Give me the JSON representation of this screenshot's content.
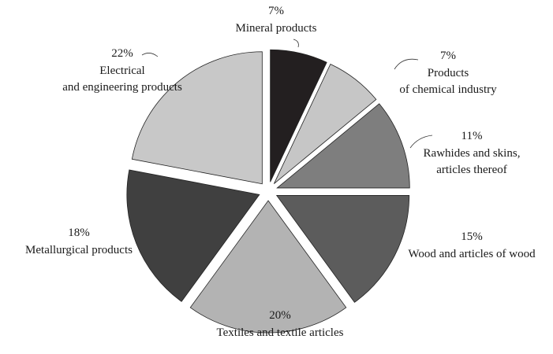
{
  "chart_data": {
    "type": "pie",
    "categories": [
      "Mineral products",
      "Products\nof chemical industry",
      "Rawhides and skins,\narticles thereof",
      "Wood and articles of wood",
      "Textiles and textile articles",
      "Metallurgical products",
      "Electrical\nand engineering products"
    ],
    "values": [
      7,
      7,
      11,
      15,
      20,
      18,
      22
    ],
    "value_labels": [
      "7%",
      "7%",
      "11%",
      "15%",
      "20%",
      "18%",
      "22%"
    ],
    "colors": [
      "#231f20",
      "#c6c6c6",
      "#7e7e7e",
      "#5c5c5c",
      "#b3b3b3",
      "#404040",
      "#c8c8c8"
    ]
  }
}
